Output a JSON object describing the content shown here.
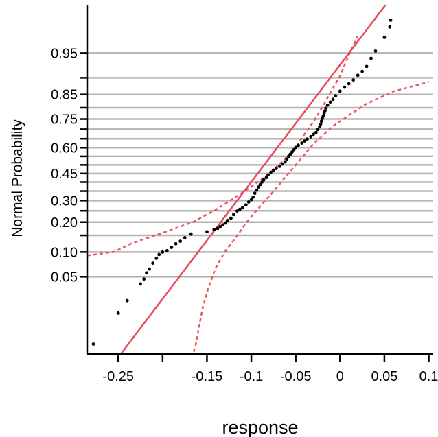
{
  "chart_data": {
    "type": "scatter",
    "title": "",
    "xlabel": "response",
    "ylabel": "Normal Probability",
    "y_scale": "normal-probability",
    "xlim": [
      -0.285,
      0.105
    ],
    "ylim": [
      0.0027,
      0.9905
    ],
    "grid": true,
    "colors": {
      "points": "#000000",
      "fit_line": "#e8485a",
      "confidence_band": "#ef5560",
      "grid": "#b3b3b3"
    },
    "x_ticks": [
      -0.25,
      -0.2,
      -0.15,
      -0.1,
      -0.05,
      0,
      0.05,
      0.1
    ],
    "x_tick_labels": [
      "-0.25",
      "",
      "-0.15",
      "-0.1",
      "-0.05",
      "0",
      "0.05",
      "0.1"
    ],
    "y_ticks": [
      0.05,
      0.1,
      0.15,
      0.2,
      0.25,
      0.3,
      0.35,
      0.4,
      0.45,
      0.5,
      0.55,
      0.6,
      0.65,
      0.7,
      0.75,
      0.8,
      0.85,
      0.9,
      0.95
    ],
    "y_tick_labels": [
      "0.05",
      "0.10",
      "",
      "0.20",
      "",
      "0.30",
      "",
      "",
      "0.45",
      "",
      "",
      "0.60",
      "",
      "",
      "0.75",
      "",
      "0.85",
      "",
      "0.95"
    ],
    "fit_line": {
      "mean": -0.0855,
      "sd": 0.0581
    },
    "confidence_band": {
      "upper": [
        [
          -0.285,
          0.0914
        ],
        [
          -0.255,
          0.1003
        ],
        [
          -0.235,
          0.1241
        ],
        [
          -0.215,
          0.1433
        ],
        [
          -0.19,
          0.1699
        ],
        [
          -0.165,
          0.2016
        ],
        [
          -0.14,
          0.2551
        ],
        [
          -0.12,
          0.3108
        ],
        [
          -0.1,
          0.3735
        ],
        [
          -0.08,
          0.4484
        ],
        [
          -0.065,
          0.5199
        ],
        [
          -0.05,
          0.6013
        ],
        [
          -0.04,
          0.6745
        ],
        [
          -0.03,
          0.7373
        ],
        [
          -0.02,
          0.8019
        ],
        [
          -0.01,
          0.8613
        ],
        [
          0.0,
          0.9045
        ],
        [
          0.01,
          0.9473
        ],
        [
          0.02,
          0.971
        ]
      ],
      "lower": [
        [
          -0.165,
          0.003
        ],
        [
          -0.163,
          0.0038
        ],
        [
          -0.16,
          0.007
        ],
        [
          -0.155,
          0.0174
        ],
        [
          -0.148,
          0.0367
        ],
        [
          -0.14,
          0.0653
        ],
        [
          -0.13,
          0.1001
        ],
        [
          -0.118,
          0.1405
        ],
        [
          -0.105,
          0.2005
        ],
        [
          -0.09,
          0.2716
        ],
        [
          -0.075,
          0.3484
        ],
        [
          -0.06,
          0.439
        ],
        [
          -0.045,
          0.5303
        ],
        [
          -0.03,
          0.6208
        ],
        [
          -0.01,
          0.7087
        ],
        [
          0.01,
          0.7677
        ],
        [
          0.03,
          0.8159
        ],
        [
          0.06,
          0.8598
        ],
        [
          0.09,
          0.8822
        ],
        [
          0.1,
          0.8888
        ]
      ]
    },
    "points": [
      [
        -0.278,
        0.0042
      ],
      [
        -0.25,
        0.0146
      ],
      [
        -0.24,
        0.0229
      ],
      [
        -0.225,
        0.0399
      ],
      [
        -0.221,
        0.0466
      ],
      [
        -0.218,
        0.056
      ],
      [
        -0.215,
        0.0628
      ],
      [
        -0.211,
        0.0741
      ],
      [
        -0.207,
        0.0848
      ],
      [
        -0.204,
        0.0939
      ],
      [
        -0.2,
        0.0998
      ],
      [
        -0.195,
        0.1034
      ],
      [
        -0.19,
        0.1124
      ],
      [
        -0.185,
        0.1231
      ],
      [
        -0.18,
        0.1307
      ],
      [
        -0.175,
        0.1423
      ],
      [
        -0.168,
        0.1543
      ],
      [
        -0.15,
        0.1627
      ],
      [
        -0.142,
        0.1707
      ],
      [
        -0.138,
        0.1752
      ],
      [
        -0.135,
        0.1822
      ],
      [
        -0.132,
        0.1893
      ],
      [
        -0.129,
        0.1966
      ],
      [
        -0.127,
        0.207
      ],
      [
        -0.123,
        0.2165
      ],
      [
        -0.12,
        0.232
      ],
      [
        -0.116,
        0.2488
      ],
      [
        -0.113,
        0.2566
      ],
      [
        -0.11,
        0.2645
      ],
      [
        -0.106,
        0.2784
      ],
      [
        -0.103,
        0.2926
      ],
      [
        -0.1,
        0.3041
      ],
      [
        -0.098,
        0.3177
      ],
      [
        -0.096,
        0.3384
      ],
      [
        -0.094,
        0.3551
      ],
      [
        -0.092,
        0.3723
      ],
      [
        -0.09,
        0.3864
      ],
      [
        -0.088,
        0.4002
      ],
      [
        -0.086,
        0.4127
      ],
      [
        -0.083,
        0.4264
      ],
      [
        -0.081,
        0.4423
      ],
      [
        -0.078,
        0.4565
      ],
      [
        -0.075,
        0.4695
      ],
      [
        -0.072,
        0.4794
      ],
      [
        -0.068,
        0.4917
      ],
      [
        -0.065,
        0.505
      ],
      [
        -0.062,
        0.5176
      ],
      [
        -0.06,
        0.5339
      ],
      [
        -0.058,
        0.5495
      ],
      [
        -0.056,
        0.562
      ],
      [
        -0.054,
        0.5757
      ],
      [
        -0.052,
        0.5886
      ],
      [
        -0.05,
        0.6013
      ],
      [
        -0.047,
        0.6132
      ],
      [
        -0.043,
        0.6256
      ],
      [
        -0.04,
        0.6375
      ],
      [
        -0.037,
        0.6481
      ],
      [
        -0.033,
        0.6609
      ],
      [
        -0.03,
        0.6732
      ],
      [
        -0.027,
        0.6836
      ],
      [
        -0.025,
        0.6987
      ],
      [
        -0.023,
        0.7125
      ],
      [
        -0.022,
        0.725
      ],
      [
        -0.021,
        0.7396
      ],
      [
        -0.02,
        0.7524
      ],
      [
        -0.019,
        0.7632
      ],
      [
        -0.018,
        0.776
      ],
      [
        -0.017,
        0.7867
      ],
      [
        -0.016,
        0.7983
      ],
      [
        -0.014,
        0.8103
      ],
      [
        -0.011,
        0.8223
      ],
      [
        -0.008,
        0.8327
      ],
      [
        -0.005,
        0.8452
      ],
      [
        0.0,
        0.861
      ],
      [
        0.005,
        0.8735
      ],
      [
        0.01,
        0.8837
      ],
      [
        0.015,
        0.8943
      ],
      [
        0.02,
        0.9062
      ],
      [
        0.025,
        0.9154
      ],
      [
        0.03,
        0.9262
      ],
      [
        0.035,
        0.9416
      ],
      [
        0.04,
        0.9531
      ],
      [
        0.05,
        0.9697
      ],
      [
        0.056,
        0.9788
      ],
      [
        0.057,
        0.9834
      ]
    ]
  }
}
